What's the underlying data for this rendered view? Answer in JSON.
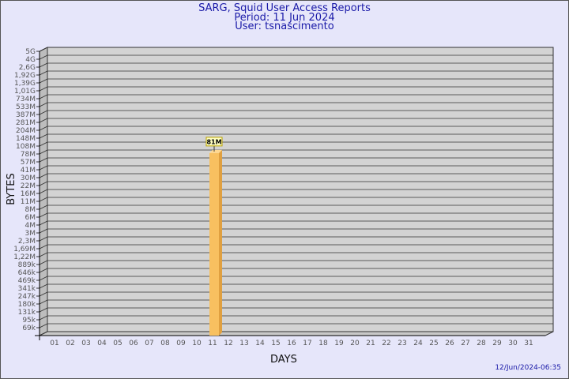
{
  "chart_data": {
    "type": "bar",
    "title": "SARG, Squid User Access Reports",
    "subtitle_period": "Period: 11 Jun 2024",
    "subtitle_user": "User: tsnascimento",
    "xlabel": "DAYS",
    "ylabel": "BYTES",
    "y_scale": "log",
    "y_tick_labels": [
      "5G",
      "4G",
      "2,6G",
      "1,92G",
      "1,39G",
      "1,01G",
      "734M",
      "533M",
      "387M",
      "281M",
      "204M",
      "148M",
      "108M",
      "78M",
      "57M",
      "41M",
      "30M",
      "22M",
      "16M",
      "11M",
      "8M",
      "6M",
      "4M",
      "3M",
      "2,3M",
      "1,69M",
      "1,22M",
      "889k",
      "646k",
      "469k",
      "341k",
      "247k",
      "180k",
      "131k",
      "95k",
      "69k"
    ],
    "categories": [
      "01",
      "02",
      "03",
      "04",
      "05",
      "06",
      "07",
      "08",
      "09",
      "10",
      "11",
      "12",
      "13",
      "14",
      "15",
      "16",
      "17",
      "18",
      "19",
      "20",
      "21",
      "22",
      "23",
      "24",
      "25",
      "26",
      "27",
      "28",
      "29",
      "30",
      "31"
    ],
    "bars": [
      {
        "day": "11",
        "value": 81000000,
        "label": "81M"
      }
    ],
    "grid": true,
    "bar_color": "#f8c060",
    "plot_bg": "#d3d3d3"
  },
  "footer": {
    "timestamp": "12/Jun/2024-06:35"
  }
}
